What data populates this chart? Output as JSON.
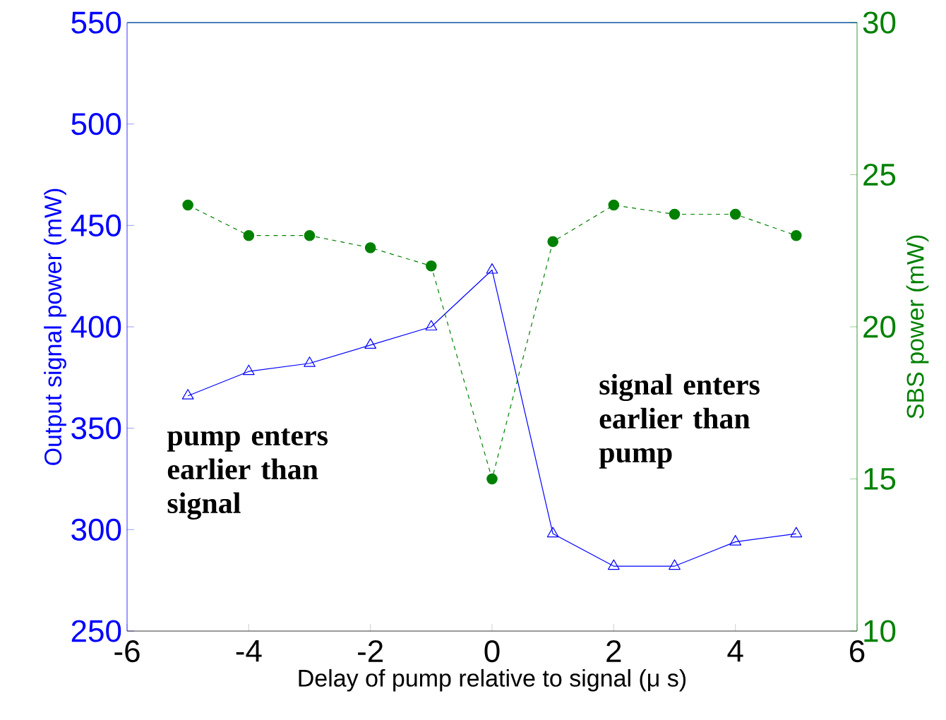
{
  "chart_data": {
    "type": "line",
    "xlabel": "Delay of pump relative to signal (μ s)",
    "ylabel": "Output signal power (mW)",
    "y2label": "SBS power (mW)",
    "x": [
      -5,
      -4,
      -3,
      -2,
      -1,
      0,
      1,
      2,
      3,
      4,
      5
    ],
    "series": [
      {
        "color": "#0000ff",
        "marker": "triangle",
        "line_style": "solid",
        "values": [
          366,
          378,
          382,
          391,
          400,
          428,
          298,
          282,
          282,
          294,
          298
        ]
      },
      {
        "color": "#008000",
        "marker": "circle",
        "line_style": "dashed",
        "axis": "y2",
        "values": [
          24.0,
          23.0,
          23.0,
          22.6,
          22.0,
          15.0,
          22.8,
          24.0,
          23.7,
          23.7,
          23.0
        ]
      }
    ],
    "xlim": [
      -6,
      6
    ],
    "xticks": [
      -6,
      -4,
      -2,
      0,
      2,
      4,
      6
    ],
    "ylim": [
      250,
      550
    ],
    "yticks": [
      250,
      300,
      350,
      400,
      450,
      500,
      550
    ],
    "y2lim": [
      10,
      30
    ],
    "y2ticks": [
      10,
      15,
      20,
      25,
      30
    ],
    "annotations": [
      "pump enters earlier than signal",
      "signal enters earlier than pump"
    ]
  }
}
